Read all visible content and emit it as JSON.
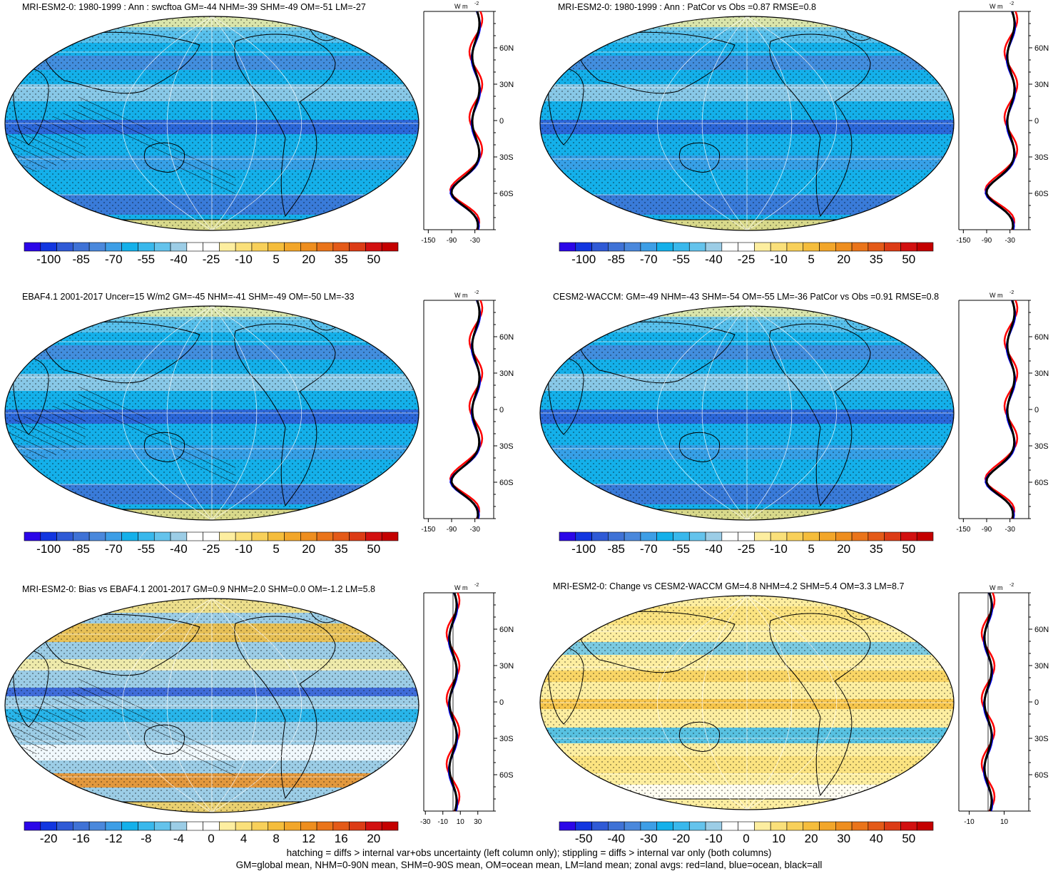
{
  "panels": [
    {
      "id": "p1",
      "title": "MRI-ESM2-0: 1980-1999 : Ann : swcftoa GM=-44 NHM=-39 SHM=-49 OM=-51 LM=-27",
      "scale": "std",
      "map_style": "clim",
      "hatch": true,
      "zonal": {
        "unit": "W m",
        "lat_ticks": [
          "60N",
          "30N",
          "0",
          "30S",
          "60S"
        ],
        "x_ticks": [
          "-150",
          "-90",
          "-30"
        ]
      }
    },
    {
      "id": "p2",
      "title": "MRI-ESM2-0: 1980-1999 : Ann : PatCor vs Obs =0.87 RMSE=0.8",
      "scale": "std",
      "map_style": "clim",
      "hatch": false,
      "zonal": {
        "unit": "W m",
        "lat_ticks": [
          "60N",
          "30N",
          "0",
          "30S",
          "60S"
        ],
        "x_ticks": [
          "-150",
          "-90",
          "-30"
        ]
      }
    },
    {
      "id": "p3",
      "title": "EBAF4.1 2001-2017 Uncer=15 W/m2 GM=-45 NHM=-41 SHM=-49 OM=-50 LM=-33",
      "scale": "std",
      "map_style": "clim",
      "hatch": true,
      "zonal": {
        "unit": "W m",
        "lat_ticks": [
          "60N",
          "30N",
          "0",
          "30S",
          "60S"
        ],
        "x_ticks": [
          "-150",
          "-90",
          "-30"
        ]
      }
    },
    {
      "id": "p4",
      "title": "CESM2-WACCM: GM=-49 NHM=-43 SHM=-54 OM=-55 LM=-36 PatCor vs Obs =0.91 RMSE=0.8",
      "scale": "std",
      "map_style": "clim",
      "hatch": false,
      "zonal": {
        "unit": "W m",
        "lat_ticks": [
          "60N",
          "30N",
          "0",
          "30S",
          "60S"
        ],
        "x_ticks": [
          "-150",
          "-90",
          "-30"
        ]
      }
    },
    {
      "id": "p5",
      "title": "MRI-ESM2-0: Bias vs EBAF4.1 2001-2017 GM=0.9 NHM=2.0 SHM=0.0 OM=-1.2 LM=5.8",
      "scale": "bias",
      "map_style": "bias",
      "hatch": true,
      "zonal": {
        "unit": "W m",
        "lat_ticks": [
          "60N",
          "30N",
          "0",
          "30S",
          "60S"
        ],
        "x_ticks": [
          "-30",
          "-10",
          "10",
          "30"
        ]
      }
    },
    {
      "id": "p6",
      "title": "MRI-ESM2-0: Change vs CESM2-WACCM GM=4.8 NHM=4.2 SHM=5.4 OM=3.3 LM=8.7",
      "scale": "change",
      "map_style": "change",
      "hatch": false,
      "zonal": {
        "unit": "W m",
        "lat_ticks": [
          "60N",
          "30N",
          "0",
          "30S",
          "60S"
        ],
        "x_ticks": [
          "-10",
          "10"
        ]
      }
    }
  ],
  "colorbars": {
    "std": {
      "labels": [
        "-100",
        "-85",
        "-70",
        "-55",
        "-40",
        "-25",
        "-10",
        "5",
        "20",
        "35",
        "50"
      ]
    },
    "bias": {
      "labels": [
        "-20",
        "-16",
        "-12",
        "-8",
        "-4",
        "0",
        "4",
        "8",
        "12",
        "16",
        "20"
      ]
    },
    "change": {
      "labels": [
        "-50",
        "-40",
        "-30",
        "-20",
        "-10",
        "0",
        "10",
        "20",
        "30",
        "40",
        "50"
      ]
    }
  },
  "palette": [
    "#2b06e8",
    "#1236e0",
    "#2f5ad6",
    "#3f72d6",
    "#4a88dc",
    "#3d9ee6",
    "#14b0ea",
    "#39b8ec",
    "#64c3ec",
    "#9ccde6",
    "#ffffff",
    "#ffffff",
    "#fdeea0",
    "#fae07a",
    "#f8d05a",
    "#f5bd3c",
    "#f2a62a",
    "#ee8e1f",
    "#ea741a",
    "#e45a18",
    "#dc3b15",
    "#d21010",
    "#c40000"
  ],
  "zonal_colors": {
    "land": "#ff0000",
    "ocean": "#0000ff",
    "all": "#000000"
  },
  "footer": {
    "line1": "hatching = diffs > internal var+obs uncertainty (left column only); stippling = diffs > internal var only (both columns)",
    "line2": "GM=global mean, NHM=0-90N mean, SHM=0-90S mean, OM=ocean mean, LM=land mean; zonal avgs: red=land, blue=ocean, black=all"
  }
}
